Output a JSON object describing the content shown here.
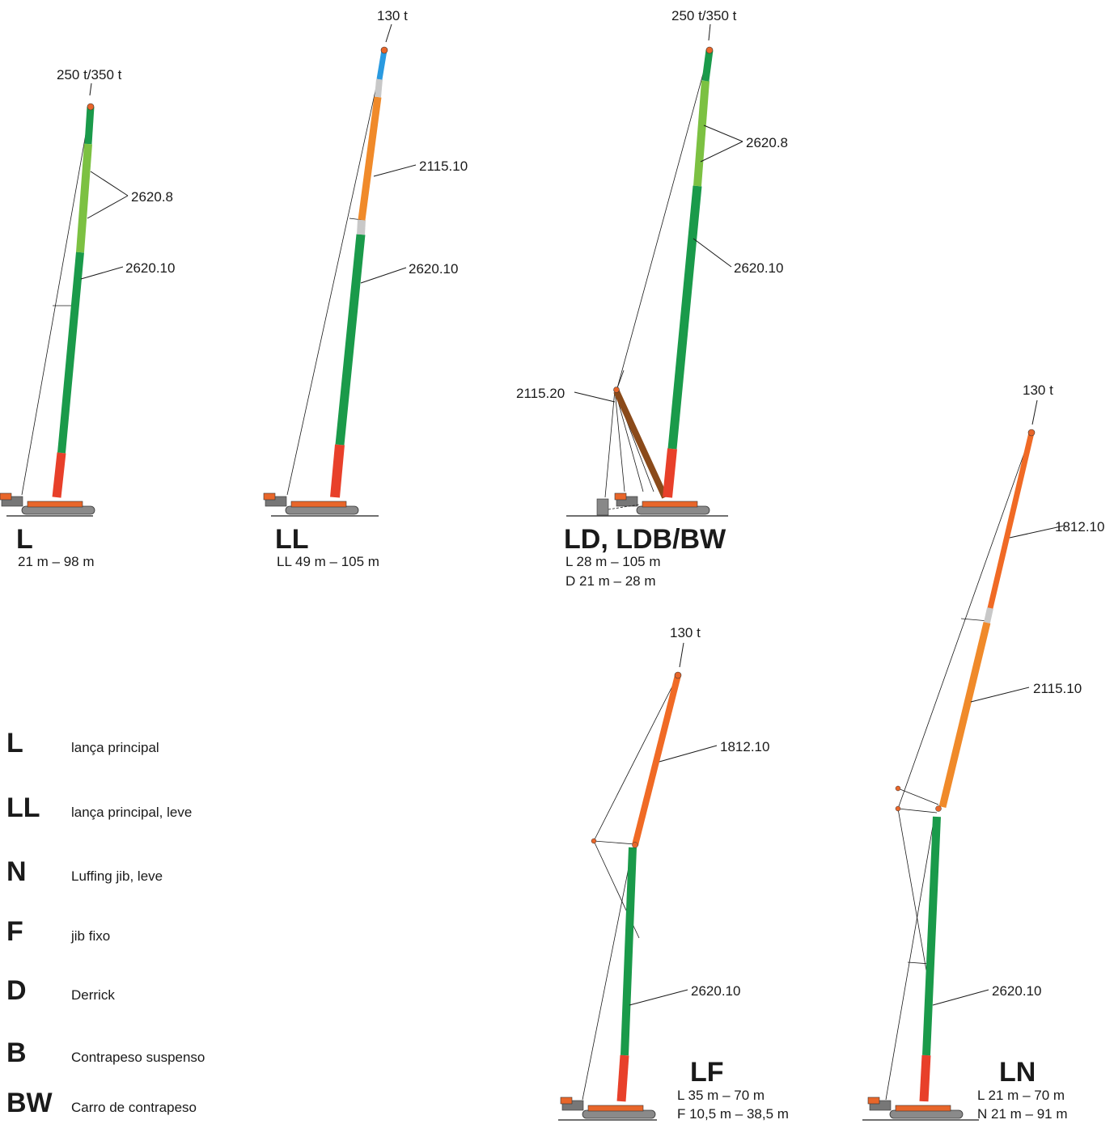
{
  "colors": {
    "green": "#1a9a4a",
    "light_green": "#7cc142",
    "red": "#e8402a",
    "orange": "#f08a2a",
    "dark_orange": "#f06a25",
    "blue": "#2a9ae0",
    "grey": "#c8c8c8",
    "brown": "#8a4a1a",
    "crawler": "#e8662a"
  },
  "configs": {
    "L": {
      "top": "250 t/350 t",
      "sec_a": "2620.8",
      "sec_b": "2620.10",
      "code": "L",
      "range1": "21 m – 98 m"
    },
    "LL": {
      "top": "130 t",
      "sec_a": "2115.10",
      "sec_b": "2620.10",
      "code": "LL",
      "range1": "LL 49 m – 105 m"
    },
    "LD": {
      "top": "250 t/350 t",
      "sec_a": "2620.8",
      "sec_b": "2620.10",
      "derrick": "2115.20",
      "code": "LD, LDB/BW",
      "range1": "L 28 m – 105 m",
      "range2": "D 21 m – 28 m"
    },
    "LF": {
      "top": "130 t",
      "sec_a": "1812.10",
      "sec_b": "2620.10",
      "code": "LF",
      "range1": "L 35 m – 70 m",
      "range2": "F 10,5 m – 38,5 m"
    },
    "LN": {
      "top": "130 t",
      "sec_a": "1812.10",
      "sec_m": "2115.10",
      "sec_b": "2620.10",
      "code": "LN",
      "range1": "L 21 m – 70 m",
      "range2": "N 21 m – 91 m"
    }
  },
  "legend": [
    {
      "code": "L",
      "desc": "lança principal"
    },
    {
      "code": "LL",
      "desc": "lança principal, leve"
    },
    {
      "code": "N",
      "desc": "Luffing jib, leve"
    },
    {
      "code": "F",
      "desc": "jib fixo"
    },
    {
      "code": "D",
      "desc": "Derrick"
    },
    {
      "code": "B",
      "desc": "Contrapeso suspenso"
    },
    {
      "code": "BW",
      "desc": "Carro de contrapeso"
    }
  ]
}
